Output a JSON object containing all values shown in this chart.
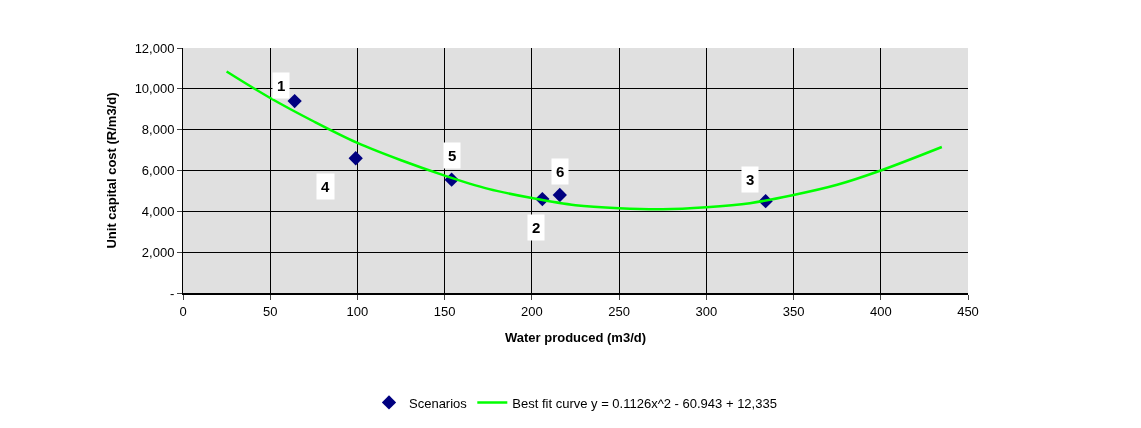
{
  "chart_data": {
    "type": "scatter",
    "xlabel": "Water produced (m3/d)",
    "ylabel": "Unit capital cost (R/m3/d)",
    "xlim": [
      0,
      450
    ],
    "xticks": [
      0,
      50,
      100,
      150,
      200,
      250,
      300,
      350,
      400,
      450
    ],
    "ylim": [
      0,
      12000
    ],
    "yticks": [
      {
        "value": 0,
        "label": "-"
      },
      {
        "value": 2000,
        "label": "2,000"
      },
      {
        "value": 4000,
        "label": "4,000"
      },
      {
        "value": 6000,
        "label": "6,000"
      },
      {
        "value": 8000,
        "label": "8,000"
      },
      {
        "value": 10000,
        "label": "10,000"
      },
      {
        "value": 12000,
        "label": "12,000"
      }
    ],
    "grid": true,
    "legend": "bottom",
    "series": [
      {
        "name": "Scenarios",
        "marker": "diamond",
        "color": "#000080",
        "x": [
          64,
          99,
          154,
          206,
          216,
          334
        ],
        "values": [
          9400,
          6600,
          5550,
          4600,
          4800,
          4500
        ]
      },
      {
        "name": "Best fit curve y = 0.1126x^2 - 60.943 + 12,335",
        "type": "line",
        "marker": "none",
        "color": "#00ff00",
        "x": [
          25,
          50,
          75,
          100,
          125,
          150,
          175,
          200,
          225,
          250,
          275,
          300,
          325,
          350,
          375,
          400,
          435
        ],
        "values": [
          10850,
          9550,
          8400,
          7350,
          6500,
          5750,
          5100,
          4650,
          4300,
          4150,
          4100,
          4200,
          4400,
          4800,
          5300,
          6000,
          7150
        ]
      }
    ],
    "annotations": [
      {
        "text": "1",
        "x": 64,
        "y": 9400
      },
      {
        "text": "4",
        "x": 99,
        "y": 6600
      },
      {
        "text": "5",
        "x": 154,
        "y": 5550
      },
      {
        "text": "2",
        "x": 206,
        "y": 4600
      },
      {
        "text": "6",
        "x": 216,
        "y": 4800
      },
      {
        "text": "3",
        "x": 334,
        "y": 4500
      }
    ]
  }
}
